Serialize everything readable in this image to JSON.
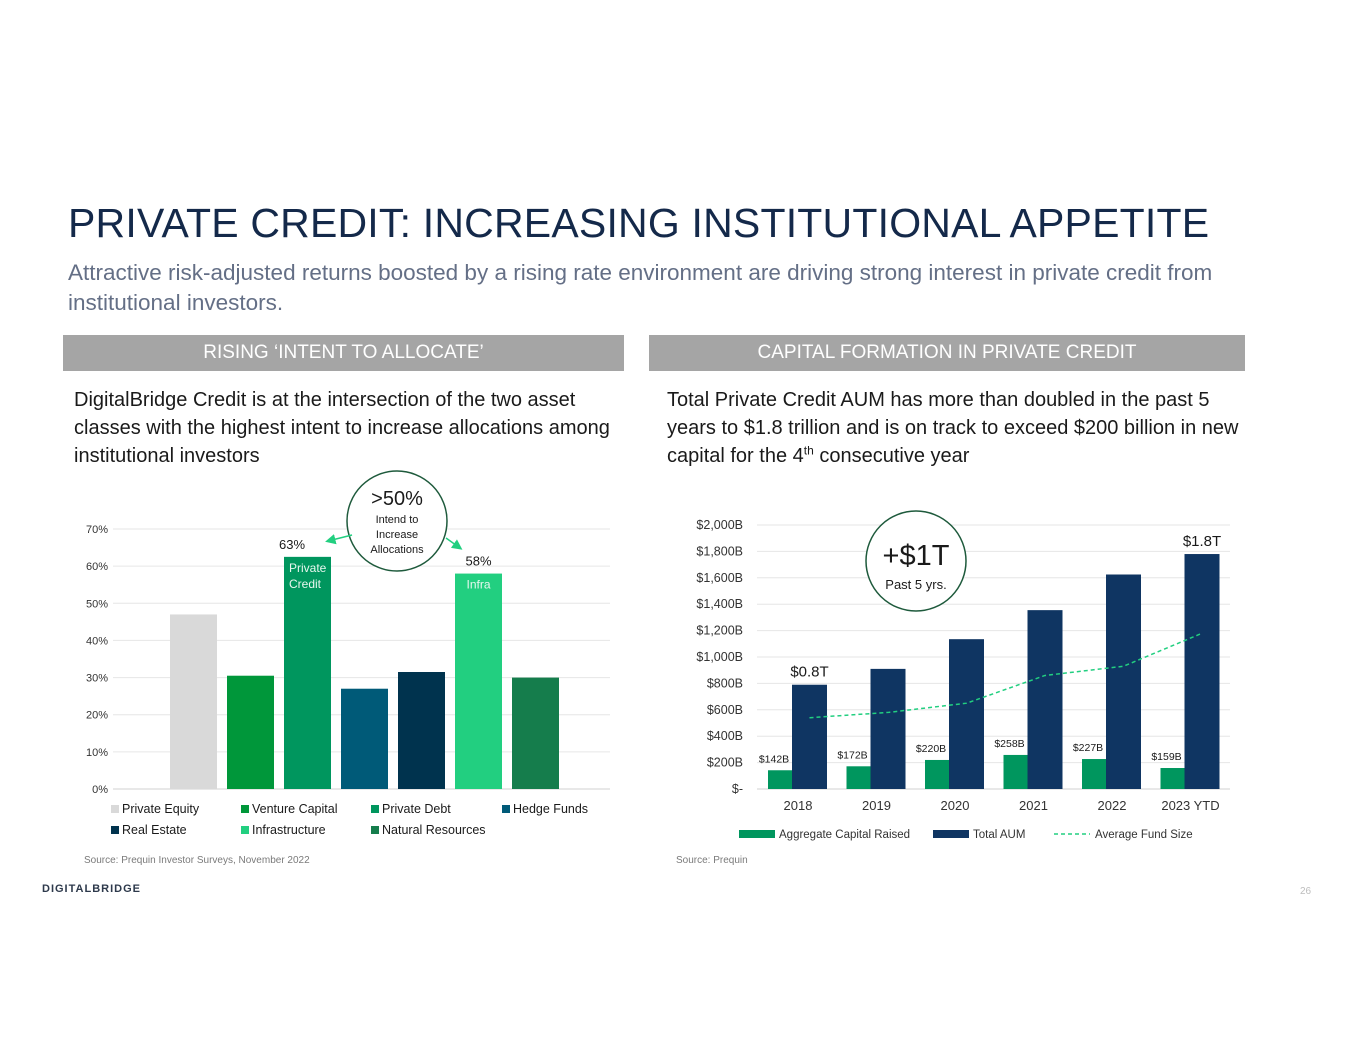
{
  "title": "PRIVATE CREDIT: INCREASING INSTITUTIONAL APPETITE",
  "subtitle": "Attractive risk-adjusted returns boosted by a rising rate environment are driving strong interest in private credit from institutional investors.",
  "left_section": {
    "header": "RISING ‘INTENT TO ALLOCATE’",
    "text": "DigitalBridge Credit is at the intersection of the two asset classes with the highest intent to increase allocations among institutional investors",
    "source": "Source: Prequin Investor Surveys, November 2022",
    "callout": {
      "big": ">50%",
      "line1": "Intend to",
      "line2": "Increase",
      "line3": "Allocations"
    }
  },
  "right_section": {
    "header": "CAPITAL FORMATION IN PRIVATE CREDIT",
    "text_before_sup": "Total Private Credit AUM has more than doubled in the past 5 years to $1.8 trillion and is on track to exceed $200 billion in new capital for the 4",
    "text_sup": "th",
    "text_after_sup": " consecutive year",
    "source": "Source: Prequin",
    "callout": {
      "big": "+$1T",
      "small": "Past 5 yrs."
    }
  },
  "footer": {
    "logo_bold": "DIGITAL",
    "logo_rest": "BRIDGE",
    "page_number": "26"
  },
  "chart_data": [
    {
      "type": "bar",
      "categories": [
        "Private Equity",
        "Venture Capital",
        "Private Debt",
        "Hedge Funds",
        "Real Estate",
        "Infrastructure",
        "Natural Resources"
      ],
      "values": [
        47,
        30.5,
        62.5,
        27,
        31.5,
        58,
        30
      ],
      "colors": [
        "#d9d9d9",
        "#00973a",
        "#00965e",
        "#005a78",
        "#00334e",
        "#22cf80",
        "#157d4c"
      ],
      "data_labels": [
        "",
        "",
        "63%",
        "",
        "",
        "58%",
        ""
      ],
      "bar_text": [
        [],
        [],
        [
          "Private",
          "Credit"
        ],
        [],
        [],
        [
          "Infra"
        ],
        []
      ],
      "yticks": [
        "0%",
        "10%",
        "20%",
        "30%",
        "40%",
        "50%",
        "60%",
        "70%"
      ],
      "ylim": [
        0,
        70
      ],
      "grid": true,
      "legend_position": "bottom"
    },
    {
      "type": "bar",
      "categories": [
        "2018",
        "2019",
        "2020",
        "2021",
        "2022",
        "2023 YTD"
      ],
      "series": [
        {
          "name": "Aggregate Capital Raised",
          "values": [
            142,
            172,
            220,
            258,
            227,
            159
          ],
          "labels": [
            "$142B",
            "$172B",
            "$220B",
            "$258B",
            "$227B",
            "$159B"
          ],
          "color": "#00965e"
        },
        {
          "name": "Total AUM",
          "values": [
            790,
            910,
            1135,
            1355,
            1625,
            1780
          ],
          "color": "#0f3562"
        },
        {
          "name": "Average Fund Size",
          "type": "line",
          "values": [
            540,
            580,
            650,
            860,
            930,
            1180
          ],
          "color": "#22cf80"
        }
      ],
      "aum_labels": [
        "$0.8T",
        "",
        "",
        "",
        "",
        "$1.8T"
      ],
      "yticks": [
        "$-",
        "$200B",
        "$400B",
        "$600B",
        "$800B",
        "$1,000B",
        "$1,200B",
        "$1,400B",
        "$1,600B",
        "$1,800B",
        "$2,000B"
      ],
      "ylim": [
        0,
        2000
      ],
      "grid": true,
      "legend_position": "bottom"
    }
  ]
}
